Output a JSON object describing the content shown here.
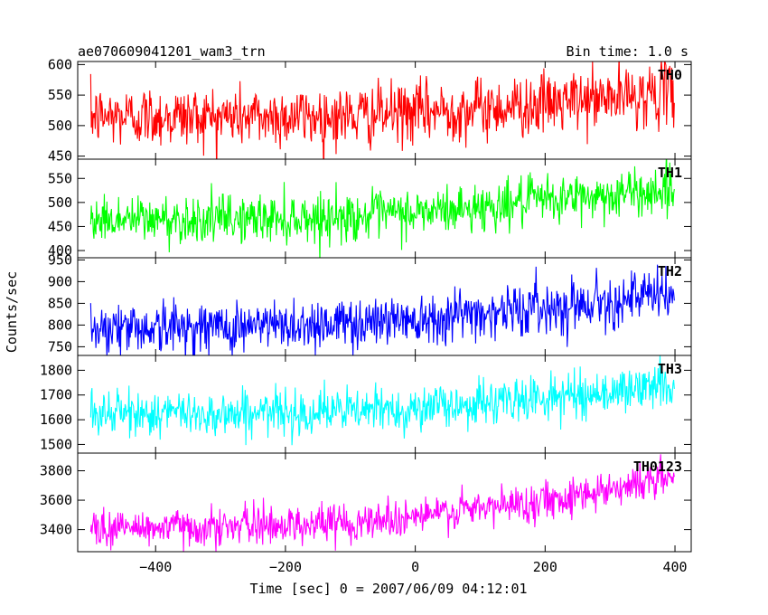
{
  "header": {
    "title": "ae070609041201_wam3_trn",
    "bin_time": "Bin time: 1.0 s"
  },
  "chart_data": {
    "type": "line",
    "title": "ae070609041201_wam3_trn",
    "subtitle": "Bin time: 1.0 s",
    "xlabel": "Time [sec] 0 = 2007/06/09 04:12:01",
    "ylabel": "Counts/sec",
    "xlim": [
      -520,
      425
    ],
    "x_ticks": [
      -400,
      -200,
      0,
      200,
      400
    ],
    "x_tick_labels": [
      "−400",
      "−200",
      "0",
      "200",
      "400"
    ],
    "x_range": [
      -500,
      399
    ],
    "grid": false,
    "panels": [
      {
        "name": "TH0",
        "color": "#ff0000",
        "ylim": [
          445,
          605
        ],
        "y_ticks": [
          450,
          500,
          550,
          600
        ],
        "anchors": [
          [
            -500,
            515
          ],
          [
            -300,
            515
          ],
          [
            -100,
            515
          ],
          [
            0,
            522
          ],
          [
            100,
            528
          ],
          [
            200,
            535
          ],
          [
            300,
            545
          ],
          [
            399,
            555
          ]
        ],
        "noise": 25
      },
      {
        "name": "TH1",
        "color": "#00ff00",
        "ylim": [
          385,
          590
        ],
        "y_ticks": [
          400,
          450,
          500,
          550
        ],
        "anchors": [
          [
            -500,
            465
          ],
          [
            -300,
            465
          ],
          [
            -100,
            470
          ],
          [
            0,
            478
          ],
          [
            100,
            490
          ],
          [
            200,
            505
          ],
          [
            300,
            515
          ],
          [
            399,
            528
          ]
        ],
        "noise": 25
      },
      {
        "name": "TH2",
        "color": "#0000ff",
        "ylim": [
          730,
          955
        ],
        "y_ticks": [
          750,
          800,
          850,
          900,
          950
        ],
        "anchors": [
          [
            -500,
            795
          ],
          [
            -300,
            795
          ],
          [
            -100,
            805
          ],
          [
            0,
            818
          ],
          [
            100,
            828
          ],
          [
            200,
            840
          ],
          [
            300,
            858
          ],
          [
            399,
            870
          ]
        ],
        "noise": 30
      },
      {
        "name": "TH3",
        "color": "#00ffff",
        "ylim": [
          1465,
          1860
        ],
        "y_ticks": [
          1500,
          1600,
          1700,
          1800
        ],
        "anchors": [
          [
            -500,
            1625
          ],
          [
            -300,
            1625
          ],
          [
            -100,
            1635
          ],
          [
            0,
            1645
          ],
          [
            100,
            1665
          ],
          [
            200,
            1690
          ],
          [
            300,
            1710
          ],
          [
            399,
            1745
          ]
        ],
        "noise": 45
      },
      {
        "name": "TH0123",
        "color": "#ff00ff",
        "ylim": [
          3250,
          3920
        ],
        "y_ticks": [
          3400,
          3600,
          3800
        ],
        "anchors": [
          [
            -500,
            3410
          ],
          [
            -300,
            3420
          ],
          [
            -100,
            3450
          ],
          [
            0,
            3490
          ],
          [
            100,
            3540
          ],
          [
            200,
            3600
          ],
          [
            300,
            3680
          ],
          [
            399,
            3760
          ]
        ],
        "noise": 65
      }
    ]
  }
}
